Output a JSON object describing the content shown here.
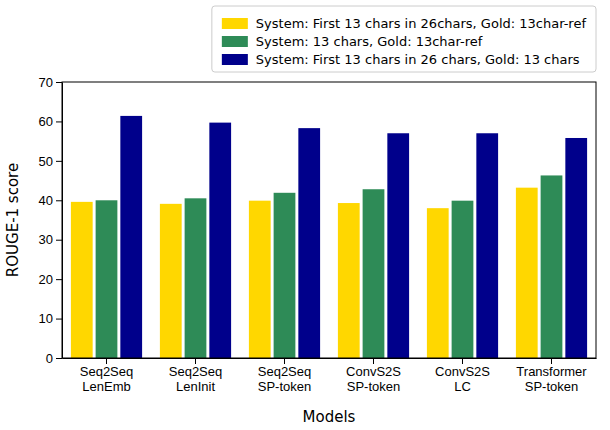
{
  "chart_data": {
    "type": "bar",
    "x_label": "Models",
    "y_label": "ROUGE-1 score",
    "categories": [
      "Seq2Seq\nLenEmb",
      "Seq2Seq\nLenInit",
      "Seq2Seq\nSP-token",
      "ConvS2S\nSP-token",
      "ConvS2S\nLC",
      "Transformer\nSP-token"
    ],
    "series": [
      {
        "name": "System: First 13 chars in 26chars, Gold: 13char-ref",
        "color": "#ffd700",
        "values": [
          39.6,
          39.1,
          39.9,
          39.3,
          38.0,
          43.2
        ]
      },
      {
        "name": "System: 13 chars, Gold: 13char-ref",
        "color": "#2e8b57",
        "values": [
          40.0,
          40.5,
          41.9,
          42.8,
          39.9,
          46.3
        ]
      },
      {
        "name": "System: First 13 chars in 26 chars, Gold: 13 chars",
        "color": "#00008b",
        "values": [
          61.4,
          59.7,
          58.3,
          57.0,
          57.0,
          55.8
        ]
      }
    ],
    "ylim": [
      0,
      70
    ],
    "yticks": [
      0,
      10,
      20,
      30,
      40,
      50,
      60,
      70
    ],
    "legend": "top"
  }
}
